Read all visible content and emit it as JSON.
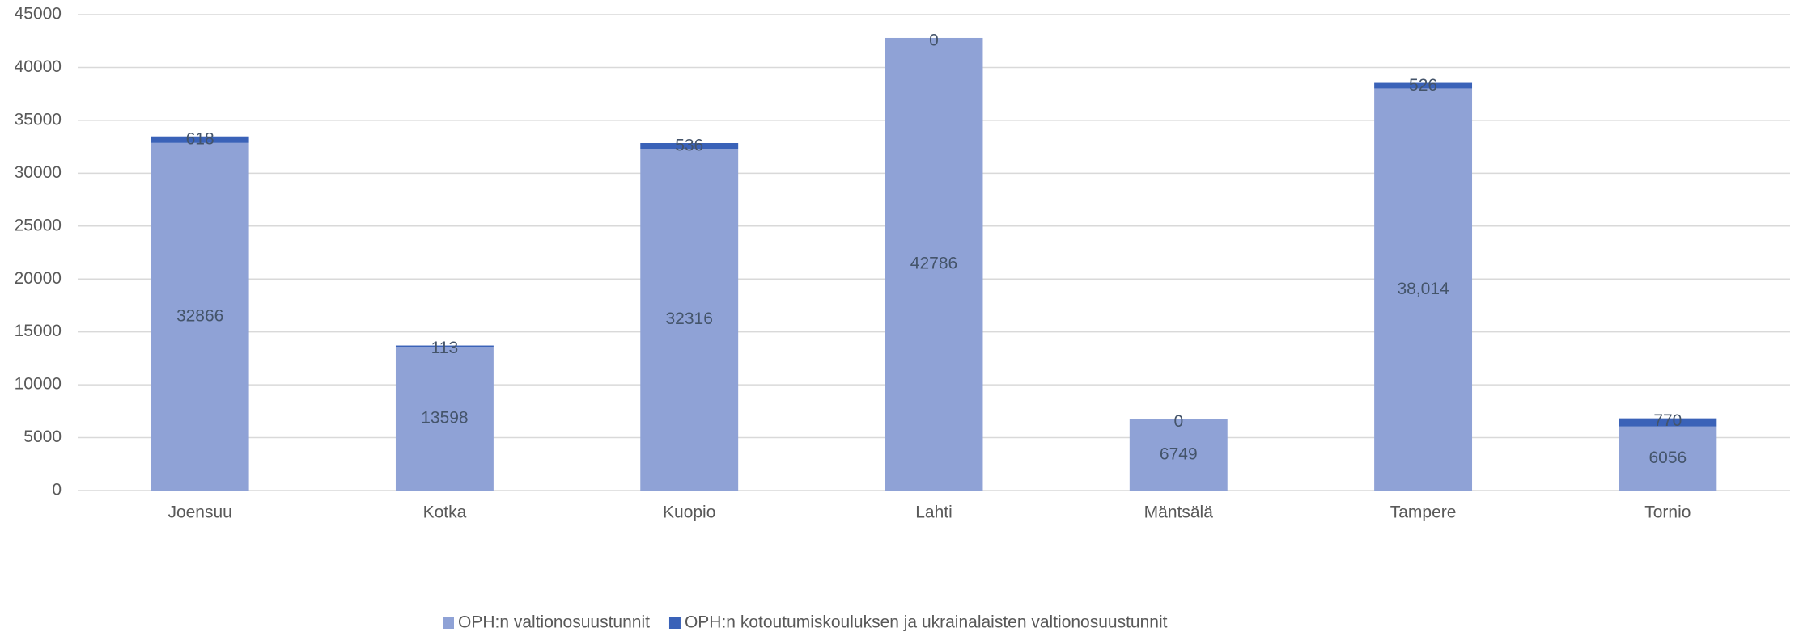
{
  "chart_data": {
    "type": "bar",
    "stacked": true,
    "categories": [
      "Joensuu",
      "Kotka",
      "Kuopio",
      "Lahti",
      "Mäntsälä",
      "Tampere",
      "Tornio"
    ],
    "series": [
      {
        "name": "OPH:n valtionosuustunnit",
        "color": "#8fa2d6",
        "values": [
          32866,
          13598,
          32316,
          42786,
          6749,
          38014,
          6056
        ],
        "value_labels": [
          "32866",
          "13598",
          "32316",
          "42786",
          "6749",
          "38,014",
          "6056"
        ]
      },
      {
        "name": "OPH:n kotoutumiskouluksen ja ukrainalaisten valtionosuustunnit",
        "color": "#3a62b8",
        "values": [
          618,
          113,
          536,
          0,
          0,
          526,
          770
        ]
      }
    ],
    "ylim": [
      0,
      45000
    ],
    "yticks": [
      0,
      5000,
      10000,
      15000,
      20000,
      25000,
      30000,
      35000,
      40000,
      45000
    ],
    "grid": true,
    "legend": "bottom"
  }
}
